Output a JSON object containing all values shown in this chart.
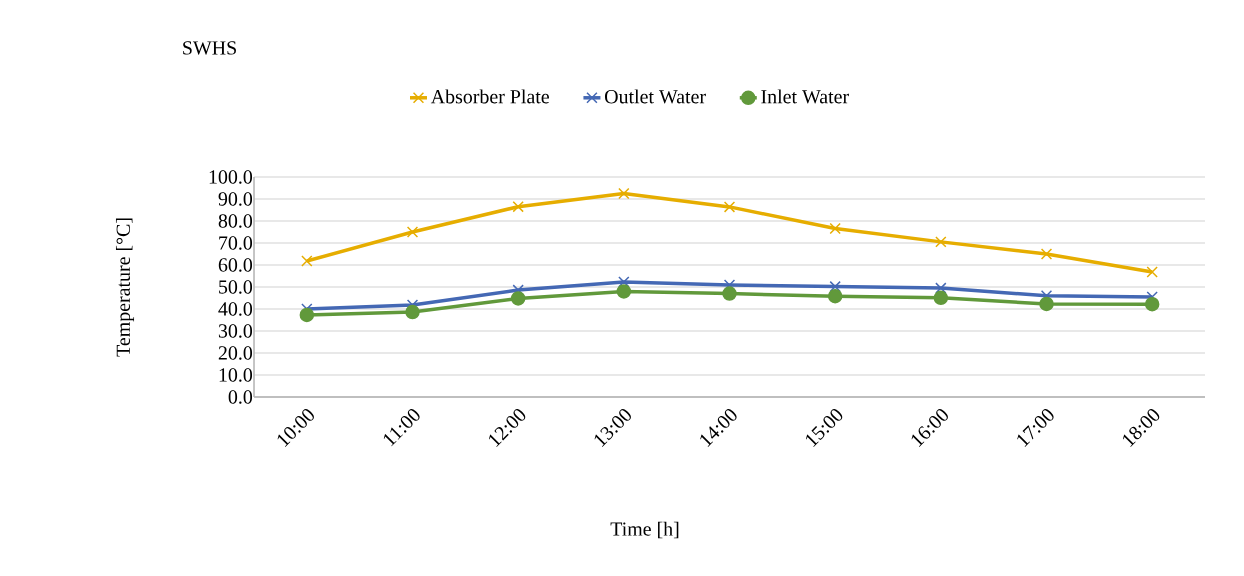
{
  "chart_data": {
    "type": "line",
    "title": "SWHS",
    "xlabel": "Time [h]",
    "ylabel": "Temperature [°C]",
    "categories": [
      "10:00",
      "11:00",
      "12:00",
      "13:00",
      "14:00",
      "15:00",
      "16:00",
      "17:00",
      "18:00"
    ],
    "series": [
      {
        "name": "Absorber Plate",
        "color": "#e6ad00",
        "marker": "cross",
        "values": [
          61.8,
          75.0,
          86.5,
          92.5,
          86.4,
          76.6,
          70.5,
          65.0,
          56.8
        ]
      },
      {
        "name": "Outlet Water",
        "color": "#4468b4",
        "marker": "cross",
        "values": [
          40.0,
          41.8,
          48.6,
          52.3,
          50.9,
          50.2,
          49.5,
          46.0,
          45.5
        ]
      },
      {
        "name": "Inlet Water",
        "color": "#61993b",
        "marker": "circle",
        "values": [
          37.3,
          38.6,
          44.8,
          48.0,
          47.0,
          45.8,
          45.1,
          42.3,
          42.2
        ]
      }
    ],
    "ylim": [
      0,
      100
    ],
    "yticks": [
      {
        "value": 0,
        "label": "0.0"
      },
      {
        "value": 10,
        "label": "10.0"
      },
      {
        "value": 20,
        "label": "20.0"
      },
      {
        "value": 30,
        "label": "30.0"
      },
      {
        "value": 40,
        "label": "40.0"
      },
      {
        "value": 50,
        "label": "50.0"
      },
      {
        "value": 60,
        "label": "60.0"
      },
      {
        "value": 70,
        "label": "70.0"
      },
      {
        "value": 80,
        "label": "80.0"
      },
      {
        "value": 90,
        "label": "90.0"
      },
      {
        "value": 100,
        "label": "100.0"
      }
    ],
    "grid": "y",
    "legend": "top",
    "line_style": "solid"
  }
}
